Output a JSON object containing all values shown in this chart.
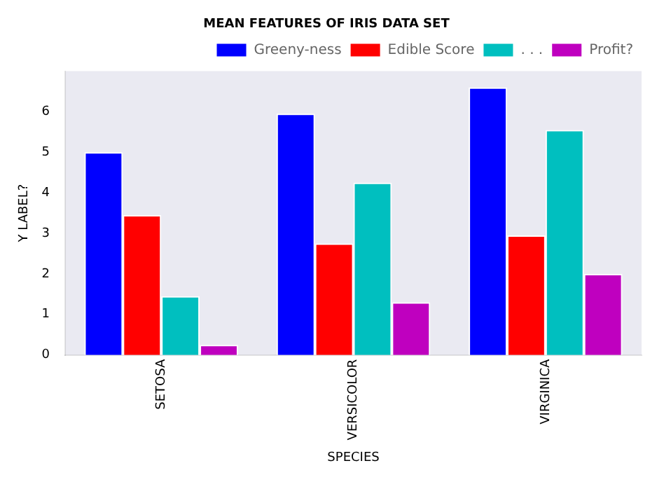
{
  "chart_data": {
    "type": "bar",
    "title": "MEAN FEATURES OF IRIS DATA SET",
    "xlabel": "SPECIES",
    "ylabel": "Y LABEL?",
    "categories": [
      "SETOSA",
      "VERSICOLOR",
      "VIRGINICA"
    ],
    "series": [
      {
        "name": "Greeny-ness",
        "color": "#0000ff",
        "values": [
          5.0,
          5.95,
          6.6
        ]
      },
      {
        "name": "Edible Score",
        "color": "#ff0000",
        "values": [
          3.45,
          2.75,
          2.95
        ]
      },
      {
        "name": ". . .",
        "color": "#00bfbf",
        "values": [
          1.45,
          4.25,
          5.55
        ]
      },
      {
        "name": "Profit?",
        "color": "#bf00bf",
        "values": [
          0.25,
          1.3,
          2.0
        ]
      }
    ],
    "ylim": [
      0,
      7
    ],
    "yticks": [
      0,
      1,
      2,
      3,
      4,
      5,
      6
    ],
    "grid": false,
    "legend": "top right"
  }
}
